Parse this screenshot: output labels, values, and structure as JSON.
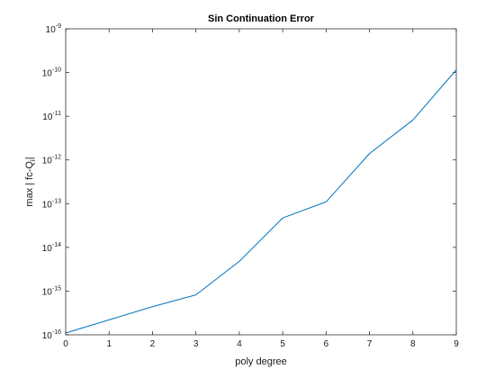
{
  "chart_data": {
    "type": "line",
    "title": "Sin Continuation Error",
    "xlabel": "poly degree",
    "ylabel": {
      "main": "max | fc-Q",
      "subscript": "i",
      "suffix": "|"
    },
    "yscale": "log",
    "xlim": [
      0,
      9
    ],
    "ylim": [
      1e-16,
      1e-09
    ],
    "x_ticks": [
      "0",
      "1",
      "2",
      "3",
      "4",
      "5",
      "6",
      "7",
      "8",
      "9"
    ],
    "y_ticks": [
      {
        "base": "10",
        "exp": "-16"
      },
      {
        "base": "10",
        "exp": "-15"
      },
      {
        "base": "10",
        "exp": "-14"
      },
      {
        "base": "10",
        "exp": "-13"
      },
      {
        "base": "10",
        "exp": "-12"
      },
      {
        "base": "10",
        "exp": "-11"
      },
      {
        "base": "10",
        "exp": "-10"
      },
      {
        "base": "10",
        "exp": "-9"
      }
    ],
    "grid": false,
    "box": true,
    "series": [
      {
        "color": "#0072BD",
        "x": [
          0,
          1,
          2,
          3,
          4,
          5,
          6,
          7,
          8,
          9
        ],
        "y": [
          1.1e-16,
          2.2e-16,
          4.4e-16,
          8.2e-16,
          4.8e-15,
          4.7e-14,
          1.1e-13,
          1.4e-12,
          8.2e-12,
          1.15e-10
        ]
      }
    ]
  }
}
